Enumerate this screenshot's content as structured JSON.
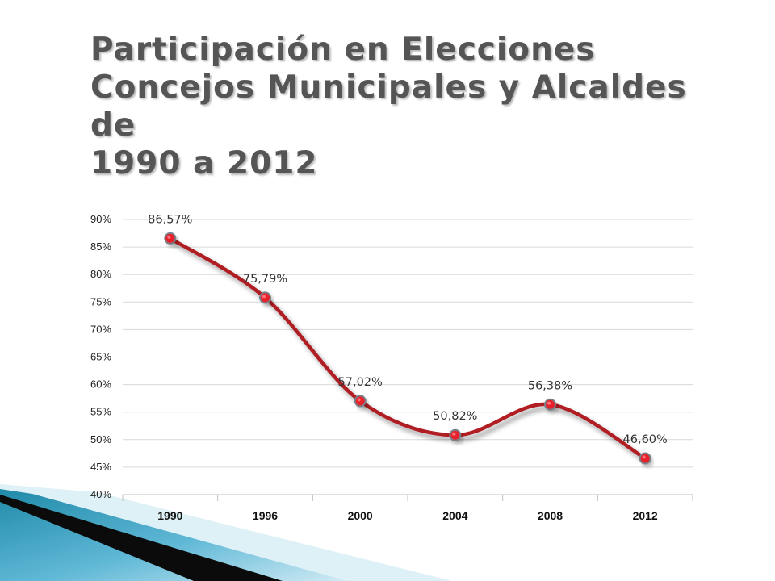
{
  "slide": {
    "title_lines": [
      "Participación en Elecciones",
      "Concejos Municipales y Alcaldes de",
      "1990 a 2012"
    ]
  },
  "chart_data": {
    "type": "line",
    "categories": [
      "1990",
      "1996",
      "2000",
      "2004",
      "2008",
      "2012"
    ],
    "series": [
      {
        "values": [
          86.57,
          75.79,
          57.02,
          50.82,
          56.38,
          46.6
        ],
        "labels": [
          "86,57%",
          "75,79%",
          "57,02%",
          "50,82%",
          "56,38%",
          "46,60%"
        ]
      }
    ],
    "ylim": [
      40,
      90
    ],
    "yticks": [
      40,
      45,
      50,
      55,
      60,
      65,
      70,
      75,
      80,
      85,
      90
    ],
    "ytick_labels": [
      "40%",
      "45%",
      "50%",
      "55%",
      "60%",
      "65%",
      "70%",
      "75%",
      "80%",
      "85%",
      "90%"
    ],
    "grid": true,
    "smooth": true,
    "colors": {
      "line": "#b01e23",
      "marker_fill": "#e8202a",
      "marker_stroke": "#7a7f88",
      "grid": "#d9d9d9",
      "tick_text": "#222222",
      "label_text": "#333333"
    }
  },
  "decoration": {
    "colors": {
      "teal": "#1f8aa8",
      "light": "#9fd3e6",
      "dark": "#0b0b0b"
    }
  }
}
